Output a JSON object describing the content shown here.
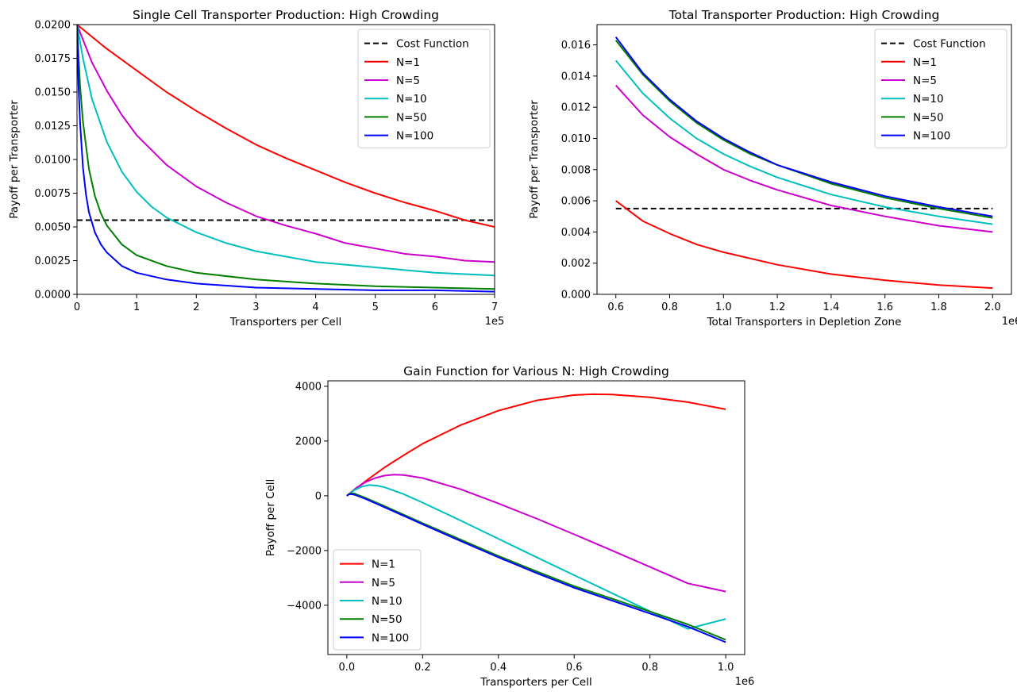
{
  "chart_data": [
    {
      "type": "line",
      "title": "Single Cell Transporter Production: High Crowding",
      "xlabel": "Transporters per Cell",
      "ylabel": "Payoff per Transporter",
      "x_offset_label": "1e5",
      "xlim": [
        0,
        7
      ],
      "ylim": [
        0,
        0.02
      ],
      "xticks": [
        0,
        1,
        2,
        3,
        4,
        5,
        6,
        7
      ],
      "xtick_labels": [
        "0",
        "1",
        "2",
        "3",
        "4",
        "5",
        "6",
        "7"
      ],
      "yticks": [
        0,
        0.0025,
        0.005,
        0.0075,
        0.01,
        0.0125,
        0.015,
        0.0175,
        0.02
      ],
      "ytick_labels": [
        "0.0000",
        "0.0025",
        "0.0050",
        "0.0075",
        "0.0100",
        "0.0125",
        "0.0150",
        "0.0175",
        "0.0200"
      ],
      "legend_position": "top-right",
      "grid": false,
      "series": [
        {
          "name": "Cost Function",
          "color": "#000000",
          "dashed": true,
          "x": [
            0,
            7
          ],
          "y": [
            0.0055,
            0.0055
          ]
        },
        {
          "name": "N=1",
          "color": "#ff0000",
          "x": [
            0,
            0.5,
            1,
            1.5,
            2,
            2.5,
            3,
            3.5,
            4,
            4.5,
            5,
            5.5,
            6,
            6.5,
            7
          ],
          "y": [
            0.02,
            0.0182,
            0.0166,
            0.015,
            0.0136,
            0.0123,
            0.0111,
            0.0101,
            0.0092,
            0.0083,
            0.0075,
            0.0068,
            0.0062,
            0.0055,
            0.005
          ]
        },
        {
          "name": "N=5",
          "color": "#cc00cc",
          "x": [
            0,
            0.25,
            0.5,
            0.75,
            1,
            1.5,
            2,
            2.5,
            3,
            3.5,
            4,
            4.5,
            5,
            5.5,
            6,
            6.5,
            7
          ],
          "y": [
            0.02,
            0.0172,
            0.0151,
            0.0133,
            0.0118,
            0.0096,
            0.008,
            0.0068,
            0.0058,
            0.0051,
            0.0045,
            0.0038,
            0.0034,
            0.003,
            0.0028,
            0.0025,
            0.0024
          ]
        },
        {
          "name": "N=10",
          "color": "#00bfbf",
          "x": [
            0,
            0.1,
            0.25,
            0.5,
            0.75,
            1,
            1.25,
            1.5,
            2,
            2.5,
            3,
            3.5,
            4,
            5,
            6,
            7
          ],
          "y": [
            0.02,
            0.0175,
            0.0145,
            0.0113,
            0.0091,
            0.0076,
            0.0065,
            0.0057,
            0.0046,
            0.0038,
            0.0032,
            0.0028,
            0.0024,
            0.002,
            0.0016,
            0.0014
          ]
        },
        {
          "name": "N=50",
          "color": "#008000",
          "x": [
            0,
            0.05,
            0.1,
            0.2,
            0.3,
            0.4,
            0.5,
            0.75,
            1,
            1.5,
            2,
            3,
            4,
            5,
            6,
            7
          ],
          "y": [
            0.02,
            0.0155,
            0.0128,
            0.0093,
            0.0073,
            0.006,
            0.0051,
            0.0037,
            0.0029,
            0.0021,
            0.0016,
            0.0011,
            0.0008,
            0.0006,
            0.0005,
            0.0004
          ]
        },
        {
          "name": "N=100",
          "color": "#0000ff",
          "x": [
            0,
            0.025,
            0.05,
            0.1,
            0.15,
            0.2,
            0.3,
            0.4,
            0.5,
            0.75,
            1,
            1.5,
            2,
            3,
            4,
            5,
            6,
            7
          ],
          "y": [
            0.02,
            0.0155,
            0.0128,
            0.0094,
            0.0074,
            0.0061,
            0.0046,
            0.0037,
            0.0031,
            0.0021,
            0.0016,
            0.0011,
            0.0008,
            0.0005,
            0.0004,
            0.0003,
            0.0003,
            0.0002
          ]
        }
      ]
    },
    {
      "type": "line",
      "title": "Total Transporter Production: High Crowding",
      "xlabel": "Total Transporters in Depletion Zone",
      "ylabel": "Payoff per Transporter",
      "x_offset_label": "1e6",
      "xlim": [
        0.53,
        2.07
      ],
      "ylim": [
        0,
        0.0173
      ],
      "xticks": [
        0.6,
        0.8,
        1.0,
        1.2,
        1.4,
        1.6,
        1.8,
        2.0
      ],
      "xtick_labels": [
        "0.6",
        "0.8",
        "1.0",
        "1.2",
        "1.4",
        "1.6",
        "1.8",
        "2.0"
      ],
      "yticks": [
        0,
        0.002,
        0.004,
        0.006,
        0.008,
        0.01,
        0.012,
        0.014,
        0.016
      ],
      "ytick_labels": [
        "0.000",
        "0.002",
        "0.004",
        "0.006",
        "0.008",
        "0.010",
        "0.012",
        "0.014",
        "0.016"
      ],
      "legend_position": "top-right",
      "grid": false,
      "series": [
        {
          "name": "Cost Function",
          "color": "#000000",
          "dashed": true,
          "x": [
            0.6,
            2.0
          ],
          "y": [
            0.0055,
            0.0055
          ]
        },
        {
          "name": "N=1",
          "color": "#ff0000",
          "x": [
            0.6,
            0.7,
            0.8,
            0.9,
            1.0,
            1.2,
            1.4,
            1.6,
            1.8,
            2.0
          ],
          "y": [
            0.006,
            0.0047,
            0.0039,
            0.0032,
            0.0027,
            0.0019,
            0.0013,
            0.0009,
            0.0006,
            0.0004
          ]
        },
        {
          "name": "N=5",
          "color": "#cc00cc",
          "x": [
            0.6,
            0.7,
            0.8,
            0.9,
            1.0,
            1.1,
            1.2,
            1.4,
            1.6,
            1.8,
            2.0
          ],
          "y": [
            0.0134,
            0.0115,
            0.0101,
            0.009,
            0.008,
            0.0073,
            0.0067,
            0.0057,
            0.005,
            0.0044,
            0.004
          ]
        },
        {
          "name": "N=10",
          "color": "#00bfbf",
          "x": [
            0.6,
            0.7,
            0.8,
            0.9,
            1.0,
            1.1,
            1.2,
            1.4,
            1.6,
            1.8,
            2.0
          ],
          "y": [
            0.015,
            0.0129,
            0.0113,
            0.01,
            0.009,
            0.0082,
            0.0075,
            0.0064,
            0.0056,
            0.005,
            0.0045
          ]
        },
        {
          "name": "N=50",
          "color": "#008000",
          "x": [
            0.6,
            0.7,
            0.8,
            0.9,
            1.0,
            1.1,
            1.2,
            1.4,
            1.6,
            1.8,
            2.0
          ],
          "y": [
            0.0163,
            0.0141,
            0.0124,
            0.011,
            0.0099,
            0.009,
            0.0083,
            0.0071,
            0.0062,
            0.0055,
            0.0049
          ]
        },
        {
          "name": "N=100",
          "color": "#0000ff",
          "x": [
            0.6,
            0.7,
            0.8,
            0.9,
            1.0,
            1.1,
            1.2,
            1.4,
            1.6,
            1.8,
            2.0
          ],
          "y": [
            0.0165,
            0.0142,
            0.0125,
            0.0111,
            0.01,
            0.0091,
            0.0083,
            0.0072,
            0.0063,
            0.0056,
            0.005
          ]
        }
      ]
    },
    {
      "type": "line",
      "title": "Gain Function for Various N: High Crowding",
      "xlabel": "Transporters per Cell",
      "ylabel": "Payoff per Cell",
      "x_offset_label": "1e6",
      "xlim": [
        -0.05,
        1.05
      ],
      "ylim": [
        -5800,
        4200
      ],
      "xticks": [
        0,
        0.2,
        0.4,
        0.6,
        0.8,
        1.0
      ],
      "xtick_labels": [
        "0.0",
        "0.2",
        "0.4",
        "0.6",
        "0.8",
        "1.0"
      ],
      "yticks": [
        -4000,
        -2000,
        0,
        2000,
        4000
      ],
      "ytick_labels": [
        "−4000",
        "−2000",
        "0",
        "2000",
        "4000"
      ],
      "legend_position": "bottom-left",
      "grid": false,
      "series": [
        {
          "name": "N=1",
          "color": "#ff0000",
          "x": [
            0,
            0.05,
            0.1,
            0.15,
            0.2,
            0.3,
            0.4,
            0.5,
            0.6,
            0.65,
            0.7,
            0.8,
            0.9,
            1.0
          ],
          "y": [
            0,
            540,
            1040,
            1480,
            1900,
            2580,
            3110,
            3480,
            3680,
            3710,
            3700,
            3600,
            3420,
            3160
          ]
        },
        {
          "name": "N=5",
          "color": "#cc00cc",
          "x": [
            0,
            0.025,
            0.05,
            0.075,
            0.1,
            0.125,
            0.15,
            0.2,
            0.3,
            0.4,
            0.5,
            0.6,
            0.7,
            0.8,
            0.9,
            1.0
          ],
          "y": [
            0,
            290,
            500,
            650,
            740,
            770,
            760,
            650,
            240,
            -280,
            -830,
            -1410,
            -2000,
            -2600,
            -3200,
            -3500
          ]
        },
        {
          "name": "N=10",
          "color": "#00bfbf",
          "x": [
            0,
            0.02,
            0.04,
            0.06,
            0.08,
            0.1,
            0.15,
            0.2,
            0.3,
            0.4,
            0.5,
            0.6,
            0.7,
            0.8,
            0.9,
            1.0
          ],
          "y": [
            0,
            210,
            340,
            390,
            370,
            310,
            60,
            -250,
            -900,
            -1570,
            -2240,
            -2900,
            -3560,
            -4220,
            -4860,
            -4500
          ]
        },
        {
          "name": "N=50",
          "color": "#008000",
          "x": [
            0,
            0.005,
            0.01,
            0.02,
            0.05,
            0.1,
            0.2,
            0.3,
            0.4,
            0.5,
            0.6,
            0.7,
            0.8,
            0.9,
            1.0
          ],
          "y": [
            0,
            60,
            90,
            80,
            -80,
            -380,
            -1000,
            -1600,
            -2200,
            -2760,
            -3300,
            -3760,
            -4230,
            -4700,
            -5260
          ]
        },
        {
          "name": "N=100",
          "color": "#0000ff",
          "x": [
            0,
            0.005,
            0.01,
            0.02,
            0.05,
            0.1,
            0.2,
            0.3,
            0.4,
            0.5,
            0.6,
            0.7,
            0.8,
            0.9,
            1.0
          ],
          "y": [
            0,
            50,
            60,
            40,
            -120,
            -420,
            -1040,
            -1650,
            -2250,
            -2820,
            -3360,
            -3830,
            -4300,
            -4780,
            -5350
          ]
        }
      ]
    }
  ]
}
